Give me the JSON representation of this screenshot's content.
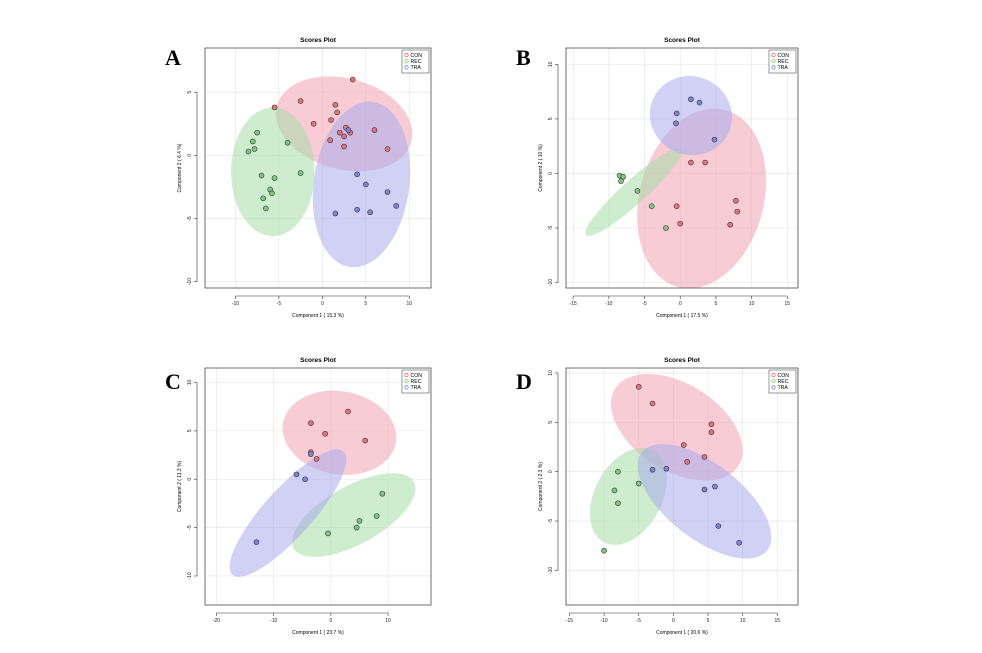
{
  "colors": {
    "CON": "#e8717d",
    "REC": "#7ec97e",
    "TRA": "#7e84d8",
    "CON_fill": "#f3a2b0",
    "REC_fill": "#a6dca6",
    "TRA_fill": "#a9acec"
  },
  "chart_data": [
    {
      "panel": "A",
      "type": "scatter",
      "title": "Scores Plot",
      "xlabel": "Component 1 ( 15.3 %)",
      "ylabel": "Component 2 ( 6.4 %)",
      "xlim": [
        -13.5,
        12.5
      ],
      "ylim": [
        -10.5,
        8.5
      ],
      "xticks": [
        -10,
        -5,
        0,
        5,
        10
      ],
      "yticks": [
        -10,
        -5,
        0,
        5
      ],
      "grid": true,
      "legend": {
        "position": "top-right",
        "entries": [
          "CON",
          "REC",
          "TRA"
        ]
      },
      "series": [
        {
          "name": "CON",
          "points": [
            [
              3.5,
              6
            ],
            [
              -2.5,
              4.3
            ],
            [
              1.5,
              4
            ],
            [
              -5.5,
              3.8
            ],
            [
              1.7,
              3.4
            ],
            [
              1,
              2.8
            ],
            [
              -1,
              2.5
            ],
            [
              2.7,
              2.2
            ],
            [
              3.2,
              1.8
            ],
            [
              6,
              2
            ],
            [
              2,
              1.8
            ],
            [
              2.5,
              1.5
            ],
            [
              0.9,
              1.2
            ],
            [
              7.5,
              0.5
            ],
            [
              2.5,
              0.7
            ]
          ],
          "ellipse": {
            "cx": 2.5,
            "cy": 2.5,
            "rx": 8,
            "ry": 3.6,
            "angle": -15
          }
        },
        {
          "name": "REC",
          "points": [
            [
              -7.5,
              1.8
            ],
            [
              -8,
              1.1
            ],
            [
              -4,
              1
            ],
            [
              -7.8,
              0.5
            ],
            [
              -8.5,
              0.3
            ],
            [
              -7,
              -1.6
            ],
            [
              -5.5,
              -1.8
            ],
            [
              -2.5,
              -1.4
            ],
            [
              -6,
              -2.7
            ],
            [
              -5.8,
              -3
            ],
            [
              -6.8,
              -3.4
            ],
            [
              -6.5,
              -4.2
            ]
          ],
          "ellipse": {
            "cx": -5.7,
            "cy": -1.3,
            "rx": 4.8,
            "ry": 5.1,
            "angle": 0
          }
        },
        {
          "name": "TRA",
          "points": [
            [
              3,
              2
            ],
            [
              4,
              -1.5
            ],
            [
              5,
              -2.3
            ],
            [
              7.5,
              -2.9
            ],
            [
              8.5,
              -4
            ],
            [
              4,
              -4.3
            ],
            [
              5.5,
              -4.5
            ],
            [
              1.5,
              -4.6
            ]
          ],
          "ellipse": {
            "cx": 4.5,
            "cy": -2.3,
            "rx": 5.5,
            "ry": 6.6,
            "angle": -8
          }
        }
      ]
    },
    {
      "panel": "B",
      "type": "scatter",
      "title": "Scores Plot",
      "xlabel": "Component 1 ( 17.5 %)",
      "ylabel": "Component 2 ( 10 %)",
      "xlim": [
        -16,
        16.5
      ],
      "ylim": [
        -10.5,
        11.5
      ],
      "xticks": [
        -15,
        -10,
        -5,
        0,
        5,
        10,
        15
      ],
      "yticks": [
        -10,
        -5,
        0,
        5,
        10
      ],
      "grid": true,
      "legend": {
        "position": "top-right",
        "entries": [
          "CON",
          "REC",
          "TRA"
        ]
      },
      "series": [
        {
          "name": "CON",
          "points": [
            [
              1.5,
              1
            ],
            [
              3.5,
              1
            ],
            [
              7.8,
              -2.5
            ],
            [
              8,
              -3.5
            ],
            [
              -0.5,
              -3
            ],
            [
              0,
              -4.6
            ],
            [
              7,
              -4.7
            ]
          ],
          "ellipse": {
            "cx": 3,
            "cy": -2.3,
            "rx": 8.7,
            "ry": 8.4,
            "angle": -15
          }
        },
        {
          "name": "REC",
          "points": [
            [
              -8.5,
              -0.2
            ],
            [
              -8,
              -0.3
            ],
            [
              -8.3,
              -0.7
            ],
            [
              -6,
              -1.6
            ],
            [
              -4,
              -3
            ],
            [
              -2,
              -5
            ]
          ],
          "ellipse": {
            "cx": -6.5,
            "cy": -1.7,
            "rx": 9,
            "ry": 1.1,
            "angle": 42
          }
        },
        {
          "name": "TRA",
          "points": [
            [
              1.5,
              6.8
            ],
            [
              2.7,
              6.5
            ],
            [
              -0.5,
              5.5
            ],
            [
              -0.6,
              4.6
            ],
            [
              4.8,
              3.1
            ]
          ],
          "ellipse": {
            "cx": 1.5,
            "cy": 5.3,
            "rx": 5.8,
            "ry": 3.6,
            "angle": -22
          }
        }
      ]
    },
    {
      "panel": "C",
      "type": "scatter",
      "title": "Scores Plot",
      "xlabel": "Component 1 ( 23.7 %)",
      "ylabel": "Component 2 ( 11.3 %)",
      "xlim": [
        -22,
        17.5
      ],
      "ylim": [
        -13,
        11.5
      ],
      "xticks": [
        -20,
        -10,
        0,
        10
      ],
      "yticks": [
        -10,
        -5,
        0,
        5,
        10
      ],
      "grid": true,
      "legend": {
        "position": "top-right",
        "entries": [
          "CON",
          "REC",
          "TRA"
        ]
      },
      "series": [
        {
          "name": "CON",
          "points": [
            [
              3,
              7
            ],
            [
              -3.5,
              5.8
            ],
            [
              -1,
              4.7
            ],
            [
              6,
              4
            ],
            [
              -3.5,
              2.8
            ],
            [
              -2.5,
              2.1
            ]
          ],
          "ellipse": {
            "cx": 1.5,
            "cy": 4.8,
            "rx": 10,
            "ry": 4.3,
            "angle": -10
          }
        },
        {
          "name": "REC",
          "points": [
            [
              9,
              -1.5
            ],
            [
              8,
              -3.8
            ],
            [
              5,
              -4.3
            ],
            [
              4.5,
              -5
            ],
            [
              -0.5,
              -5.6
            ]
          ],
          "ellipse": {
            "cx": 4,
            "cy": -3.7,
            "rx": 12,
            "ry": 3,
            "angle": 29
          }
        },
        {
          "name": "TRA",
          "points": [
            [
              -6,
              0.5
            ],
            [
              -4.5,
              0
            ],
            [
              -3.5,
              2.6
            ],
            [
              -13,
              -6.5
            ]
          ],
          "ellipse": {
            "cx": -7.5,
            "cy": -3.5,
            "rx": 14.5,
            "ry": 2.5,
            "angle": 48
          }
        }
      ]
    },
    {
      "panel": "D",
      "type": "scatter",
      "title": "Scores Plot",
      "xlabel": "Component 1 ( 20.6 %)",
      "ylabel": "Component 2 ( 2.3 %)",
      "xlim": [
        -15.5,
        18
      ],
      "ylim": [
        -13.5,
        10.5
      ],
      "xticks": [
        -15,
        -10,
        -5,
        0,
        5,
        10,
        15
      ],
      "yticks": [
        -10,
        -5,
        0,
        5,
        10
      ],
      "grid": true,
      "legend": {
        "position": "top-right",
        "entries": [
          "CON",
          "REC",
          "TRA"
        ]
      },
      "series": [
        {
          "name": "CON",
          "points": [
            [
              -5,
              8.6
            ],
            [
              -3,
              6.9
            ],
            [
              5.5,
              4.8
            ],
            [
              5.5,
              4
            ],
            [
              1.5,
              2.7
            ],
            [
              4.5,
              1.5
            ],
            [
              2,
              1
            ]
          ],
          "ellipse": {
            "cx": 0.5,
            "cy": 4.5,
            "rx": 10.5,
            "ry": 4.4,
            "angle": -32
          }
        },
        {
          "name": "REC",
          "points": [
            [
              -8,
              0
            ],
            [
              -5,
              -1.2
            ],
            [
              -8.5,
              -1.9
            ],
            [
              -8,
              -3.2
            ],
            [
              -10,
              -8
            ]
          ],
          "ellipse": {
            "cx": -6.5,
            "cy": -2.5,
            "rx": 7.5,
            "ry": 3.4,
            "angle": 62
          }
        },
        {
          "name": "TRA",
          "points": [
            [
              -3,
              0.2
            ],
            [
              -1,
              0.3
            ],
            [
              6,
              -1.5
            ],
            [
              4.5,
              -1.8
            ],
            [
              6.5,
              -5.5
            ],
            [
              9.5,
              -7.2
            ]
          ],
          "ellipse": {
            "cx": 4.5,
            "cy": -3,
            "rx": 11.5,
            "ry": 3.8,
            "angle": -38
          }
        }
      ]
    }
  ]
}
